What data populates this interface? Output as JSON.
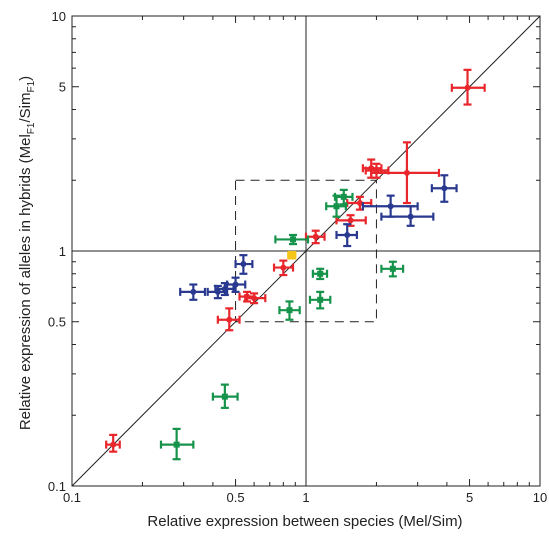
{
  "chart_data": {
    "type": "scatter",
    "xscale": "log",
    "yscale": "log",
    "xlim": [
      0.1,
      10
    ],
    "ylim": [
      0.1,
      10
    ],
    "xlabel": "Relative expression between species (Mel/Sim)",
    "ylabel": "Relative expression of alleles in hybrids (Mel",
    "ylabel_sub1": "F1",
    "ylabel_mid": "/Sim",
    "ylabel_sub2": "F1",
    "ylabel_end": ")",
    "xticks": [
      {
        "value": 0.1,
        "label": "0.1"
      },
      {
        "value": 0.5,
        "label": "0.5"
      },
      {
        "value": 1,
        "label": "1"
      },
      {
        "value": 5,
        "label": "5"
      },
      {
        "value": 10,
        "label": "10"
      }
    ],
    "yticks": [
      {
        "value": 0.1,
        "label": "0.1"
      },
      {
        "value": 0.5,
        "label": "0.5"
      },
      {
        "value": 1,
        "label": "1"
      },
      {
        "value": 5,
        "label": "5"
      },
      {
        "value": 10,
        "label": "10"
      }
    ],
    "reference_lines": {
      "diagonal": true,
      "x_equals_1": true,
      "y_equals_1": true
    },
    "dashed_box": {
      "x": [
        0.5,
        2
      ],
      "y": [
        0.5,
        2
      ]
    },
    "colors": {
      "red": "#e8262b",
      "blue": "#2a3990",
      "green": "#15934a",
      "yellow": "#f5c518",
      "axis": "#222222"
    },
    "series": [
      {
        "color": "red",
        "points": [
          {
            "x": 0.15,
            "y": 0.15,
            "xlo": 0.14,
            "xhi": 0.16,
            "ylo": 0.14,
            "yhi": 0.165
          },
          {
            "x": 0.47,
            "y": 0.51,
            "xlo": 0.42,
            "xhi": 0.52,
            "ylo": 0.46,
            "yhi": 0.57
          },
          {
            "x": 0.56,
            "y": 0.64,
            "xlo": 0.52,
            "xhi": 0.6,
            "ylo": 0.61,
            "yhi": 0.67
          },
          {
            "x": 0.6,
            "y": 0.63,
            "xlo": 0.55,
            "xhi": 0.67,
            "ylo": 0.6,
            "yhi": 0.66
          },
          {
            "x": 0.8,
            "y": 0.85,
            "xlo": 0.73,
            "xhi": 0.88,
            "ylo": 0.79,
            "yhi": 0.91
          },
          {
            "x": 1.1,
            "y": 1.15,
            "xlo": 1.0,
            "xhi": 1.2,
            "ylo": 1.08,
            "yhi": 1.22
          },
          {
            "x": 1.55,
            "y": 1.35,
            "xlo": 1.35,
            "xhi": 1.8,
            "ylo": 1.28,
            "yhi": 1.42
          },
          {
            "x": 1.7,
            "y": 1.6,
            "xlo": 1.5,
            "xhi": 1.9,
            "ylo": 1.5,
            "yhi": 1.7
          },
          {
            "x": 1.9,
            "y": 2.25,
            "xlo": 1.75,
            "xhi": 2.1,
            "ylo": 2.05,
            "yhi": 2.45
          },
          {
            "x": 2.0,
            "y": 2.2,
            "xlo": 1.8,
            "xhi": 2.25,
            "ylo": 2.05,
            "yhi": 2.35
          },
          {
            "x": 2.7,
            "y": 2.15,
            "xlo": 1.9,
            "xhi": 3.7,
            "ylo": 1.6,
            "yhi": 2.9
          },
          {
            "x": 4.9,
            "y": 4.95,
            "xlo": 4.2,
            "xhi": 5.8,
            "ylo": 4.2,
            "yhi": 5.9
          }
        ]
      },
      {
        "color": "blue",
        "points": [
          {
            "x": 0.33,
            "y": 0.67,
            "xlo": 0.29,
            "xhi": 0.37,
            "ylo": 0.62,
            "yhi": 0.72
          },
          {
            "x": 0.42,
            "y": 0.67,
            "xlo": 0.38,
            "xhi": 0.46,
            "ylo": 0.63,
            "yhi": 0.71
          },
          {
            "x": 0.45,
            "y": 0.69,
            "xlo": 0.41,
            "xhi": 0.49,
            "ylo": 0.65,
            "yhi": 0.73
          },
          {
            "x": 0.5,
            "y": 0.72,
            "xlo": 0.46,
            "xhi": 0.55,
            "ylo": 0.67,
            "yhi": 0.77
          },
          {
            "x": 0.54,
            "y": 0.88,
            "xlo": 0.5,
            "xhi": 0.59,
            "ylo": 0.8,
            "yhi": 0.96
          },
          {
            "x": 1.5,
            "y": 1.17,
            "xlo": 1.35,
            "xhi": 1.65,
            "ylo": 1.05,
            "yhi": 1.3
          },
          {
            "x": 2.3,
            "y": 1.55,
            "xlo": 1.75,
            "xhi": 3.0,
            "ylo": 1.4,
            "yhi": 1.72
          },
          {
            "x": 2.8,
            "y": 1.4,
            "xlo": 2.1,
            "xhi": 3.5,
            "ylo": 1.28,
            "yhi": 1.55
          },
          {
            "x": 3.9,
            "y": 1.85,
            "xlo": 3.45,
            "xhi": 4.4,
            "ylo": 1.62,
            "yhi": 2.1
          }
        ]
      },
      {
        "color": "green",
        "points": [
          {
            "x": 0.28,
            "y": 0.15,
            "xlo": 0.24,
            "xhi": 0.33,
            "ylo": 0.13,
            "yhi": 0.175
          },
          {
            "x": 0.45,
            "y": 0.24,
            "xlo": 0.4,
            "xhi": 0.51,
            "ylo": 0.215,
            "yhi": 0.27
          },
          {
            "x": 0.85,
            "y": 0.56,
            "xlo": 0.77,
            "xhi": 0.94,
            "ylo": 0.51,
            "yhi": 0.61
          },
          {
            "x": 0.88,
            "y": 1.12,
            "xlo": 0.74,
            "xhi": 1.02,
            "ylo": 1.07,
            "yhi": 1.17
          },
          {
            "x": 1.15,
            "y": 0.62,
            "xlo": 1.04,
            "xhi": 1.27,
            "ylo": 0.57,
            "yhi": 0.67
          },
          {
            "x": 1.15,
            "y": 0.8,
            "xlo": 1.07,
            "xhi": 1.23,
            "ylo": 0.76,
            "yhi": 0.84
          },
          {
            "x": 1.35,
            "y": 1.55,
            "xlo": 1.22,
            "xhi": 1.48,
            "ylo": 1.4,
            "yhi": 1.72
          },
          {
            "x": 1.45,
            "y": 1.7,
            "xlo": 1.33,
            "xhi": 1.58,
            "ylo": 1.58,
            "yhi": 1.82
          },
          {
            "x": 2.35,
            "y": 0.84,
            "xlo": 2.1,
            "xhi": 2.6,
            "ylo": 0.78,
            "yhi": 0.9
          }
        ]
      },
      {
        "color": "yellow",
        "points": [
          {
            "x": 0.87,
            "y": 0.96,
            "xlo": 0.84,
            "xhi": 0.9,
            "ylo": 0.93,
            "yhi": 0.99
          }
        ]
      }
    ]
  }
}
